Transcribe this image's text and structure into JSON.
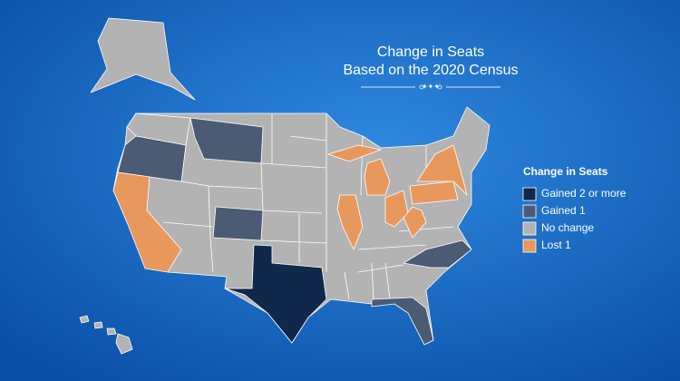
{
  "title": {
    "line1": "Change in Seats",
    "line2": "Based on the 2020 Census"
  },
  "legend": {
    "title": "Change in Seats",
    "items": [
      {
        "label": "Gained 2 or more",
        "color": "#10284a"
      },
      {
        "label": "Gained 1",
        "color": "#4b5b74"
      },
      {
        "label": "No change",
        "color": "#b3b3b3"
      },
      {
        "label": "Lost 1",
        "color": "#e8985c"
      }
    ]
  }
}
